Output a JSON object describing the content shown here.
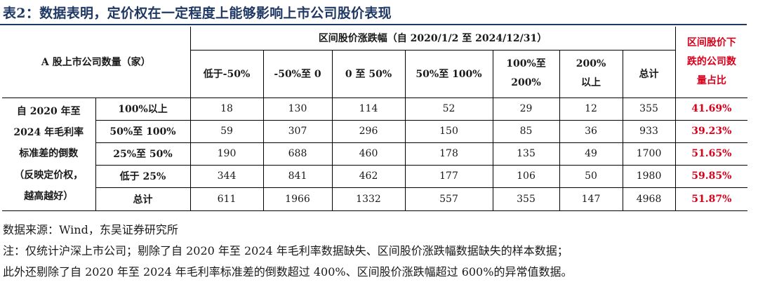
{
  "title": "表2：数据表明，定价权在一定程度上能够影响上市公司股价表现",
  "table": {
    "row_header": "A 股上市公司数量（家）",
    "group_header": "区间股价涨跌幅（自 2020/1/2 至 2024/12/31）",
    "ratio_header": "区间股价下跌的公司数量占比",
    "ratio_header_lines": [
      "区间股价下",
      "跌的公司数",
      "量占比"
    ],
    "columns": [
      "低于-50%",
      "-50%至 0",
      "0 至 50%",
      "50%至 100%",
      "100%至200%",
      "200%以上",
      "总计"
    ],
    "column_lines": [
      [
        "低于-50%"
      ],
      [
        "-50%至 0"
      ],
      [
        "0 至 50%"
      ],
      [
        "50%至 100%"
      ],
      [
        "100%至",
        "200%"
      ],
      [
        "200%",
        "以上"
      ],
      [
        "总计"
      ]
    ],
    "group_label": "自 2020 年至 2024 年毛利率标准差的倒数（反映定价权，越高越好）",
    "group_label_lines": [
      "自 2020 年至",
      "2024 年毛利率",
      "标准差的倒数",
      "（反映定价权，",
      "越高越好）"
    ],
    "rows": [
      {
        "label": "100%以上",
        "values": [
          "18",
          "130",
          "114",
          "52",
          "29",
          "12",
          "355"
        ],
        "ratio": "41.69%"
      },
      {
        "label": "50%至 100%",
        "values": [
          "59",
          "307",
          "296",
          "150",
          "85",
          "36",
          "933"
        ],
        "ratio": "39.23%"
      },
      {
        "label": "25%至 50%",
        "values": [
          "190",
          "688",
          "460",
          "178",
          "135",
          "49",
          "1700"
        ],
        "ratio": "51.65%"
      },
      {
        "label": "低于 25%",
        "values": [
          "344",
          "841",
          "462",
          "177",
          "106",
          "50",
          "1980"
        ],
        "ratio": "59.85%"
      },
      {
        "label": "总计",
        "values": [
          "611",
          "1966",
          "1332",
          "557",
          "355",
          "147",
          "4968"
        ],
        "ratio": "51.87%"
      }
    ]
  },
  "source": "数据来源：Wind，东吴证券研究所",
  "note1": "注：仅统计沪深上市公司；剔除了自 2020 年至 2024 年毛利率数据缺失、区间股价涨跌幅数据缺失的样本数据；",
  "note2": "此外还剔除了自 2020 年至 2024 年毛利率标准差的倒数超过 400%、区间股价涨跌幅超过 600%的异常值数据。",
  "colors": {
    "title": "#1f3864",
    "highlight": "#d9001b",
    "text": "#1a1a1a"
  }
}
